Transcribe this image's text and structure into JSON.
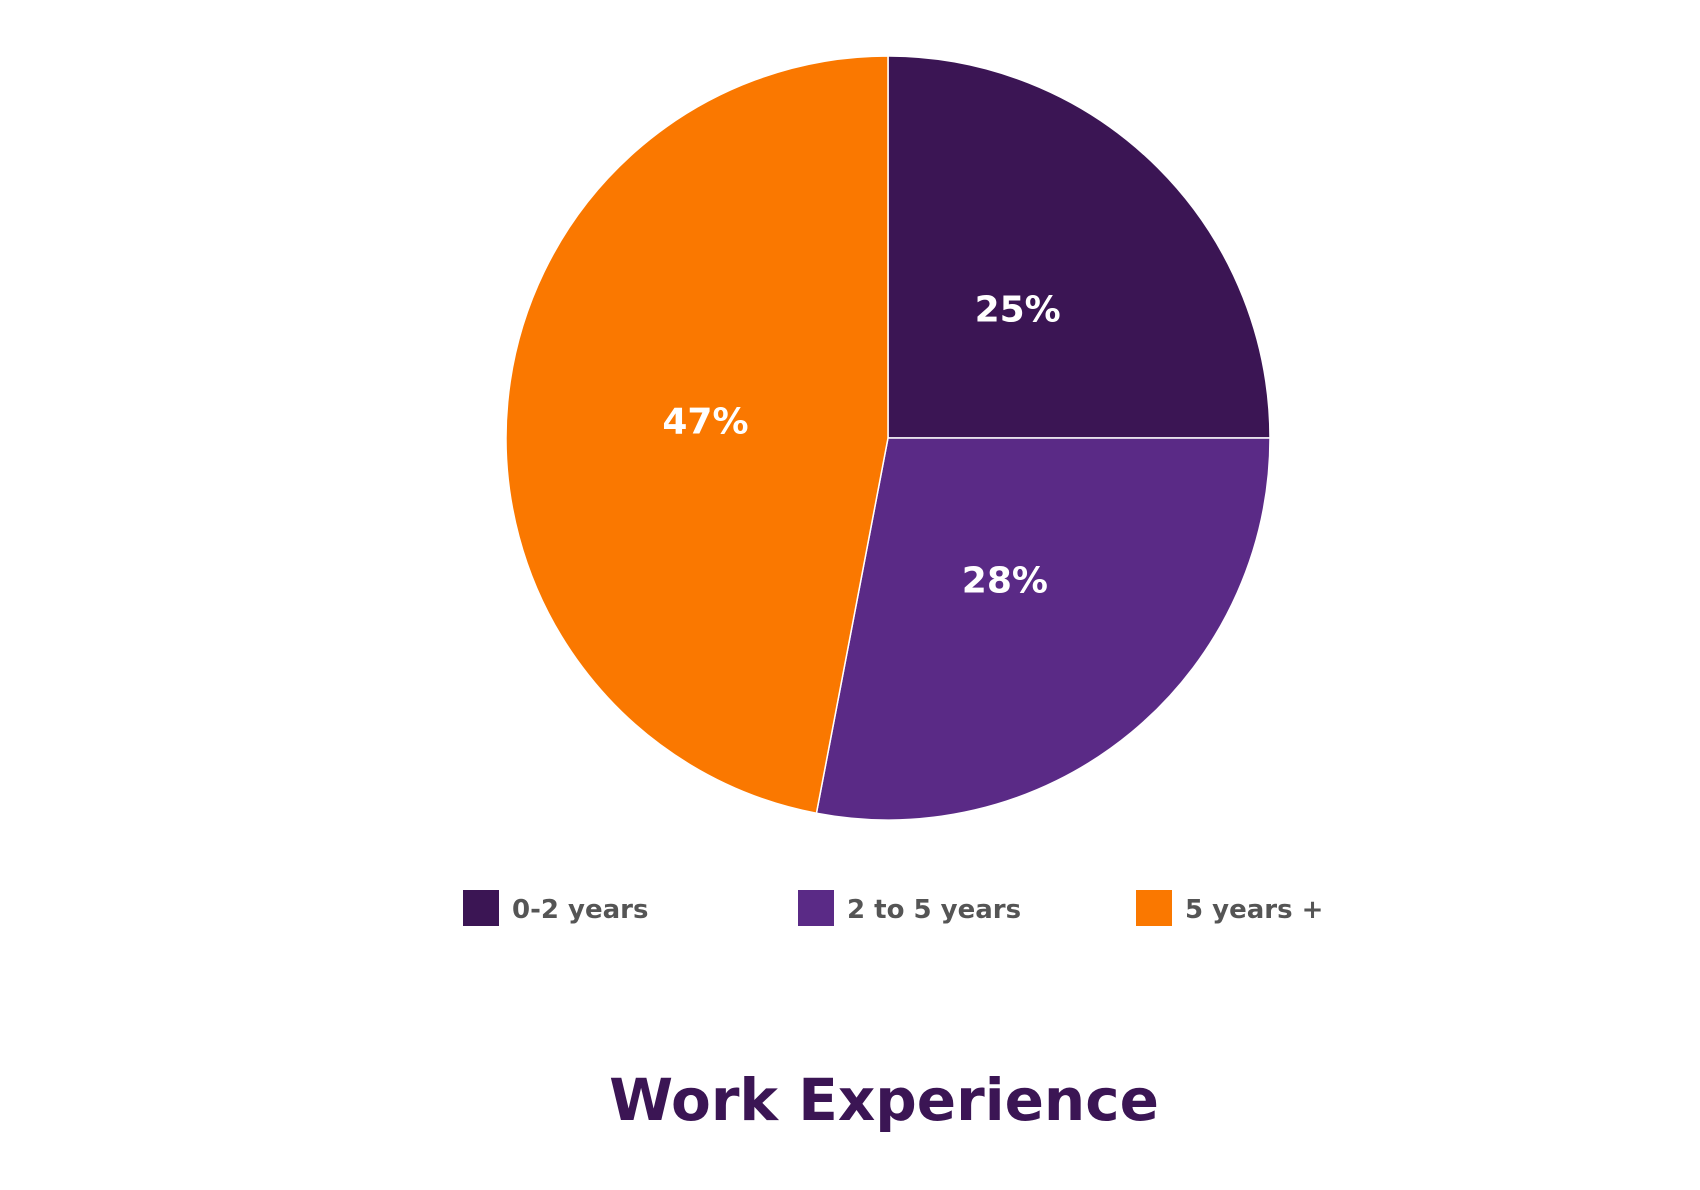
{
  "chart_data": {
    "type": "pie",
    "title": "Work Experience",
    "categories": [
      "0-2 years",
      "2 to 5 years",
      "5 years +"
    ],
    "values": [
      25,
      28,
      47
    ],
    "value_labels": [
      "25%",
      "28%",
      "47%"
    ],
    "colors": [
      "#3b1554",
      "#5a2a86",
      "#fa7800"
    ],
    "legend_position": "bottom",
    "start_angle_deg": 0,
    "direction": "clockwise"
  },
  "colors": {
    "title": "#3b1554",
    "legend_text": "#555555",
    "slice_separator": "#ffffff",
    "background": "#ffffff"
  }
}
